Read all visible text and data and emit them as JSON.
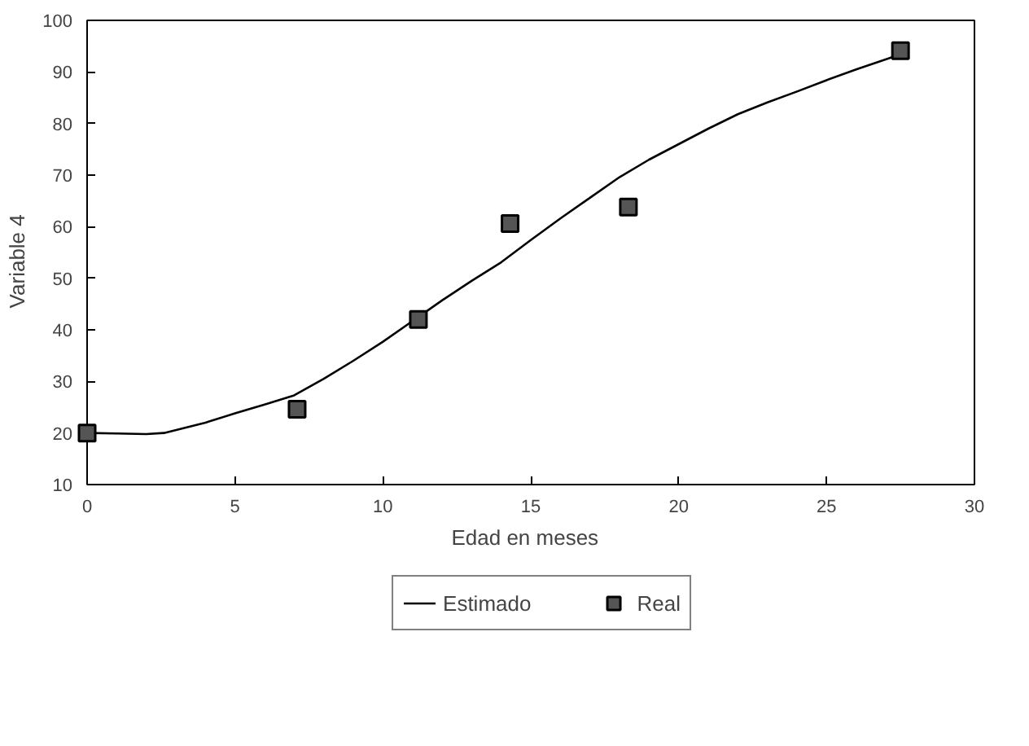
{
  "chart_data": {
    "type": "line",
    "xlabel": "Edad  en  meses",
    "ylabel": "Variable    4",
    "xlim": [
      0,
      30
    ],
    "xticks": [
      0,
      5,
      10,
      15,
      20,
      25,
      30
    ],
    "ylim": [
      10,
      100
    ],
    "yticks": [
      10,
      20,
      30,
      40,
      50,
      60,
      70,
      80,
      90,
      100
    ],
    "grid": false,
    "legend": "bottom",
    "series": [
      {
        "name": "Estimado",
        "type": "line",
        "color": "#000000",
        "line_style": "solid",
        "marker": "none",
        "x": [
          0,
          1,
          2,
          2.6,
          4,
          5,
          6,
          7,
          8,
          9,
          10,
          11,
          12,
          13,
          14,
          15,
          16,
          17,
          18,
          19,
          20,
          21,
          22,
          23,
          24,
          25,
          26,
          27.5
        ],
        "values": [
          20,
          19.9,
          19.8,
          20,
          22,
          23.8,
          25.5,
          27.3,
          30.5,
          34,
          37.7,
          41.7,
          45.7,
          49.5,
          53.1,
          57.4,
          61.6,
          65.6,
          69.6,
          73,
          76,
          79,
          81.8,
          84.1,
          86.2,
          88.4,
          90.5,
          93.4
        ]
      },
      {
        "name": "Real",
        "type": "scatter",
        "color": "#000000",
        "marker": "square",
        "x": [
          0,
          7.1,
          11.2,
          14.3,
          18.3,
          27.5
        ],
        "values": [
          20,
          24.6,
          42,
          60.6,
          63.8,
          94.1
        ]
      }
    ]
  }
}
